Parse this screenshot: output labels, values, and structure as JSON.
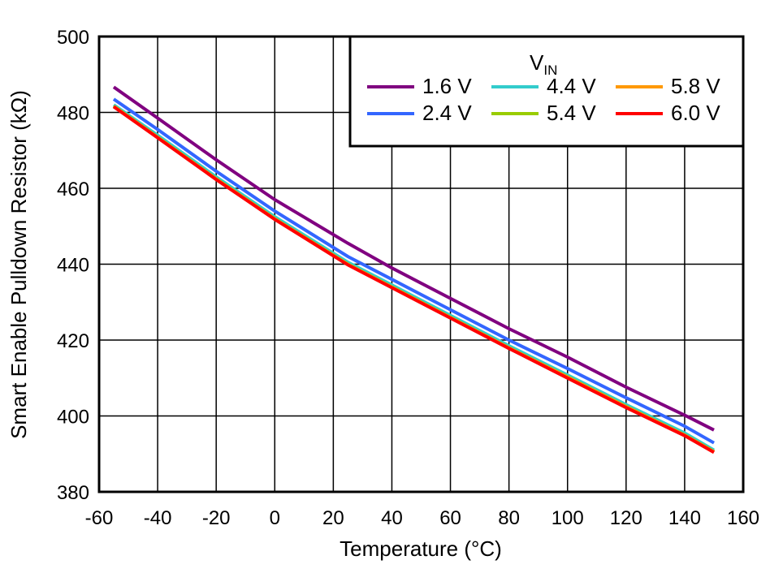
{
  "chart_data": {
    "type": "line",
    "title": "",
    "xlabel": "Temperature (°C)",
    "ylabel": "Smart Enable Pulldown Resistor (kΩ)",
    "xlim": [
      -60,
      160
    ],
    "ylim": [
      380,
      500
    ],
    "xticks": [
      -60,
      -40,
      -20,
      0,
      20,
      40,
      60,
      80,
      100,
      120,
      140,
      160
    ],
    "yticks": [
      380,
      400,
      420,
      440,
      460,
      480,
      500
    ],
    "grid": true,
    "legend": {
      "title": "V",
      "title_sub": "IN",
      "placement": "top-right"
    },
    "x": [
      -55,
      -40,
      -20,
      0,
      25,
      40,
      60,
      80,
      100,
      120,
      140,
      150
    ],
    "series": [
      {
        "name": "1.6 V",
        "color": "#800080",
        "values": [
          486.7,
          478.5,
          467.5,
          457,
          445.5,
          439,
          431,
          423,
          415.5,
          407.6,
          400.2,
          396.3
        ]
      },
      {
        "name": "2.4 V",
        "color": "#3366ff",
        "values": [
          483.5,
          475.5,
          464.5,
          454,
          442,
          436,
          428,
          420,
          412.5,
          404.8,
          397.3,
          392.9
        ]
      },
      {
        "name": "4.4 V",
        "color": "#33cccc",
        "values": [
          482,
          474,
          463,
          452.5,
          440.5,
          434.5,
          426.5,
          418.5,
          410.8,
          403,
          395.5,
          391
        ]
      },
      {
        "name": "5.4 V",
        "color": "#99cc00",
        "values": [
          481.7,
          473.5,
          462.5,
          452,
          440,
          434,
          426,
          418,
          410.3,
          402.5,
          395,
          390.6
        ]
      },
      {
        "name": "5.8 V",
        "color": "#ff9900",
        "values": [
          481.6,
          473.4,
          462.4,
          451.9,
          439.9,
          433.9,
          425.9,
          417.9,
          410.2,
          402.4,
          394.9,
          390.5
        ]
      },
      {
        "name": "6.0 V",
        "color": "#ff0000",
        "values": [
          481.5,
          473.3,
          462.3,
          451.8,
          439.8,
          433.8,
          425.8,
          417.8,
          410,
          402.2,
          394.8,
          390.4
        ]
      }
    ]
  }
}
